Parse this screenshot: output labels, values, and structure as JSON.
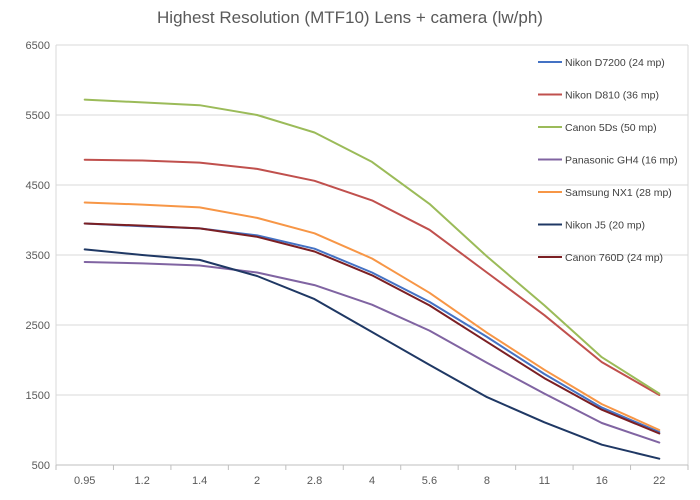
{
  "chart_data": {
    "type": "line",
    "title": "Highest Resolution (MTF10) Lens + camera (lw/ph)",
    "xlabel": "",
    "ylabel": "",
    "categories": [
      "0.95",
      "1.2",
      "1.4",
      "2",
      "2.8",
      "4",
      "5.6",
      "8",
      "11",
      "16",
      "22"
    ],
    "ylim": [
      500,
      6500
    ],
    "yticks": [
      "500",
      "1500",
      "2500",
      "3500",
      "4500",
      "5500",
      "6500"
    ],
    "grid": "horizontal",
    "legend_position": "right",
    "series": [
      {
        "name": "Nikon D7200 (24 mp)",
        "color": "#4472C4",
        "values": [
          3950,
          3910,
          3880,
          3780,
          3590,
          3250,
          2830,
          2330,
          1800,
          1320,
          970
        ]
      },
      {
        "name": "Nikon D810 (36 mp)",
        "color": "#C0504D",
        "values": [
          4860,
          4850,
          4820,
          4730,
          4560,
          4280,
          3860,
          3250,
          2640,
          1970,
          1500
        ]
      },
      {
        "name": "Canon 5Ds (50 mp)",
        "color": "#9BBB59",
        "values": [
          5720,
          5680,
          5640,
          5500,
          5250,
          4830,
          4230,
          3480,
          2780,
          2040,
          1520
        ]
      },
      {
        "name": "Panasonic GH4 (16 mp)",
        "color": "#8064A2",
        "values": [
          3400,
          3380,
          3350,
          3250,
          3070,
          2790,
          2420,
          1960,
          1520,
          1100,
          820
        ]
      },
      {
        "name": "Samsung NX1 (28 mp)",
        "color": "#F79646",
        "values": [
          4250,
          4220,
          4180,
          4030,
          3810,
          3450,
          2960,
          2390,
          1860,
          1370,
          1000
        ]
      },
      {
        "name": "Nikon J5 (20 mp)",
        "color": "#1F3864",
        "values": [
          3580,
          3500,
          3430,
          3200,
          2870,
          2400,
          1930,
          1470,
          1110,
          790,
          590
        ]
      },
      {
        "name": "Canon 760D (24 mp)",
        "color": "#7B1F23",
        "values": [
          3950,
          3920,
          3880,
          3760,
          3550,
          3210,
          2780,
          2260,
          1740,
          1290,
          950
        ]
      }
    ]
  }
}
